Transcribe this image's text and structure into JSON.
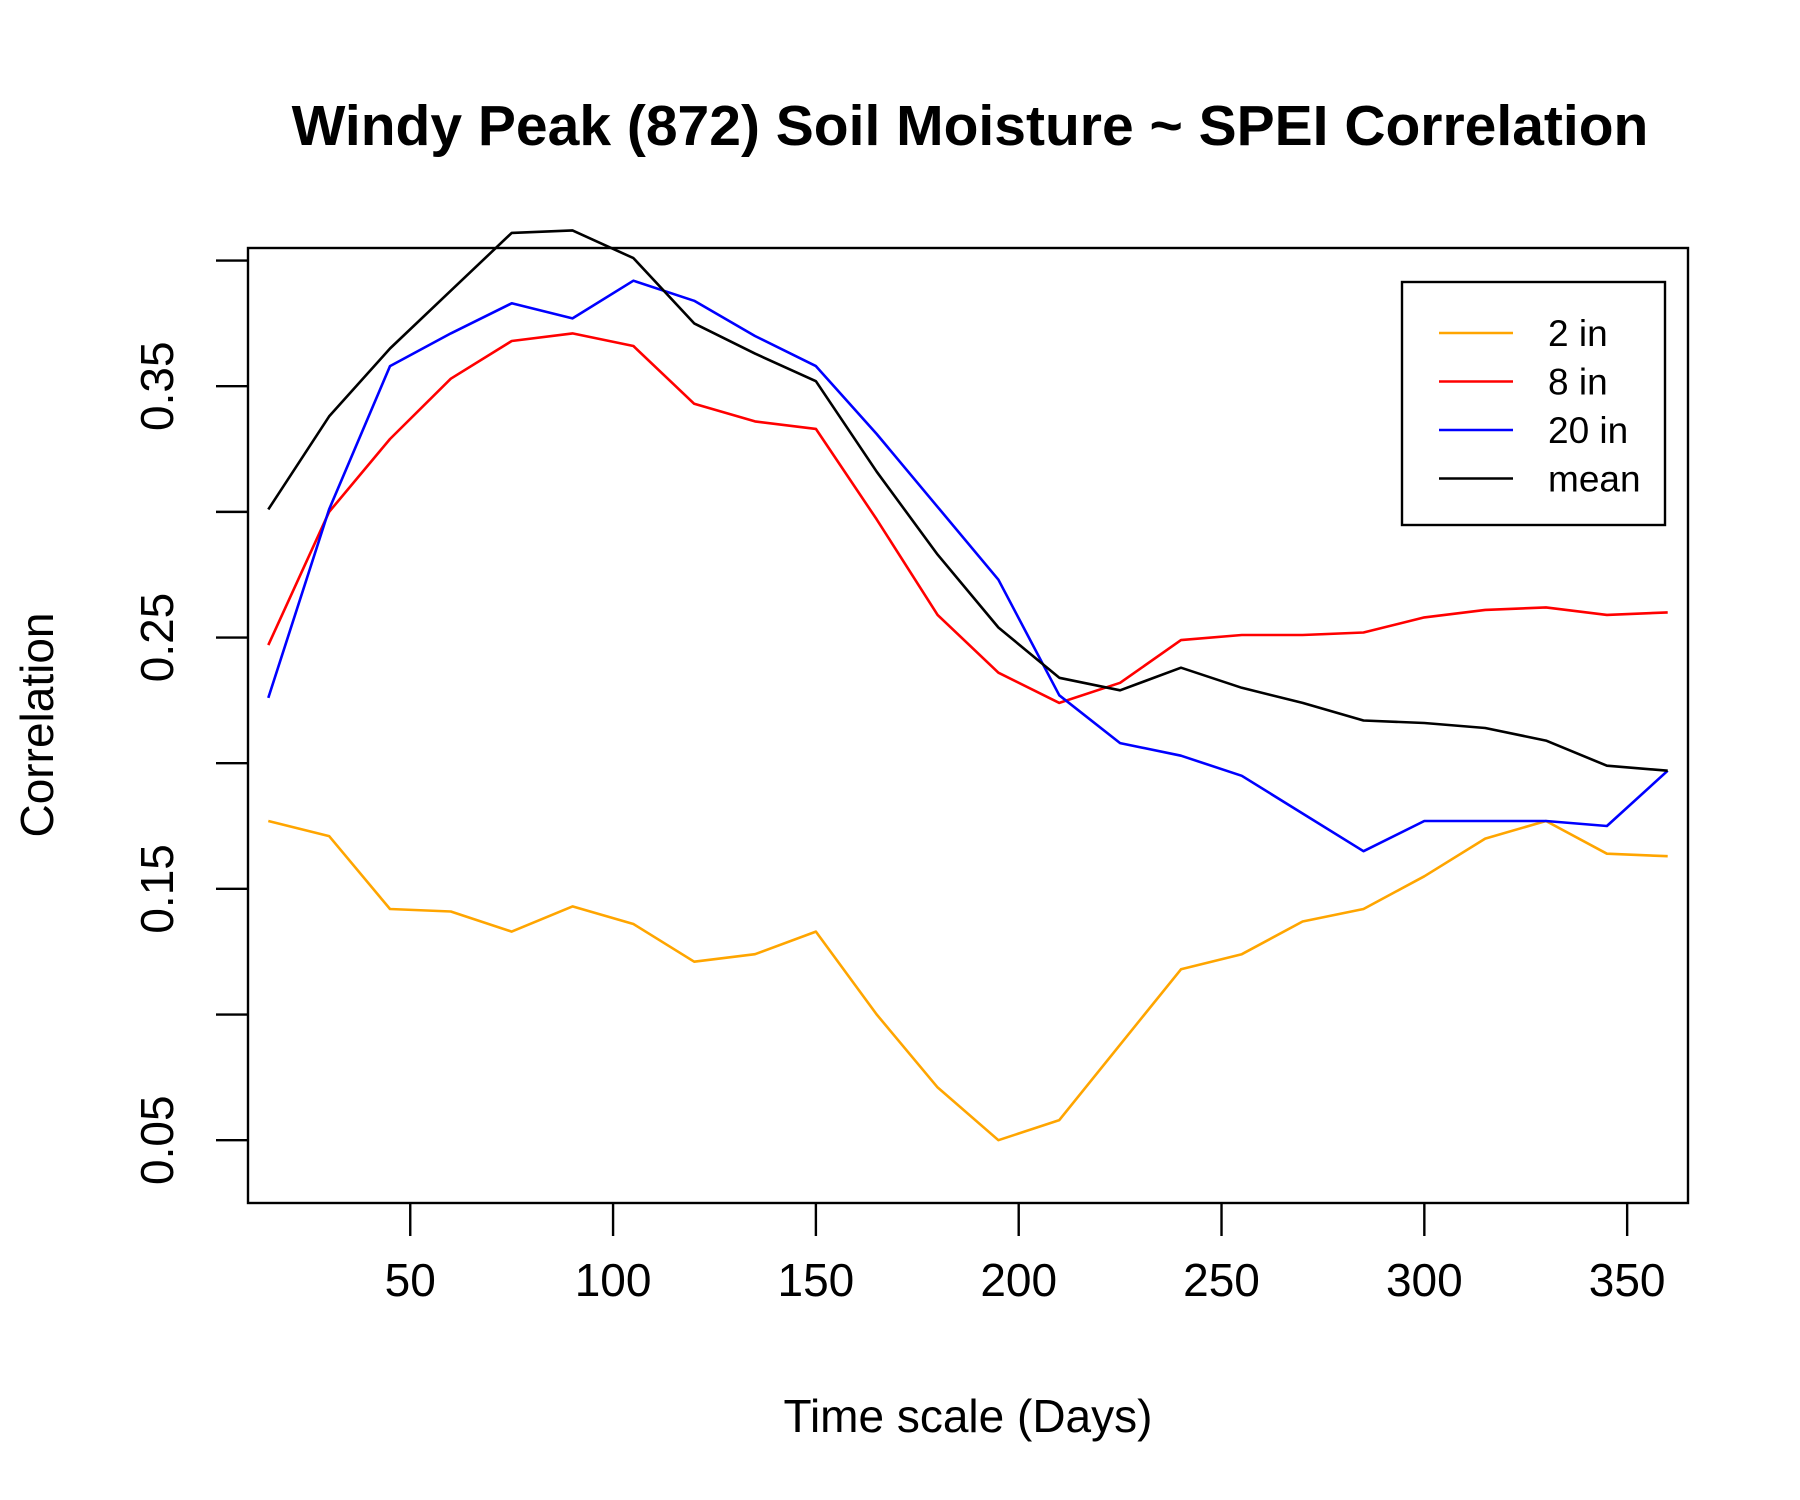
{
  "chart_data": {
    "type": "line",
    "title": "Windy Peak (872) Soil Moisture ~ SPEI Correlation",
    "xlabel": "Time scale (Days)",
    "ylabel": "Correlation",
    "xlim": [
      10,
      365
    ],
    "ylim": [
      0.025,
      0.405
    ],
    "x_ticks": [
      50,
      100,
      150,
      200,
      250,
      300,
      350
    ],
    "x_tick_labels": [
      "50",
      "100",
      "150",
      "200",
      "250",
      "300",
      "350"
    ],
    "y_ticks": [
      0.05,
      0.1,
      0.15,
      0.2,
      0.25,
      0.3,
      0.35,
      0.4
    ],
    "y_tick_labels": [
      "0.05",
      "",
      "0.15",
      "",
      "0.25",
      "",
      "0.35",
      ""
    ],
    "grid": false,
    "legend_position": "top-right",
    "x": [
      15,
      30,
      45,
      60,
      75,
      90,
      105,
      120,
      135,
      150,
      165,
      180,
      195,
      210,
      225,
      240,
      255,
      270,
      285,
      300,
      315,
      330,
      345,
      360
    ],
    "series": [
      {
        "name": "2 in",
        "color": "#FFA500",
        "values": [
          0.177,
          0.171,
          0.142,
          0.141,
          0.133,
          0.143,
          0.136,
          0.121,
          0.124,
          0.133,
          0.1,
          0.071,
          0.05,
          0.058,
          0.088,
          0.118,
          0.124,
          0.137,
          0.142,
          0.155,
          0.17,
          0.177,
          0.164,
          0.163
        ]
      },
      {
        "name": "8 in",
        "color": "#FF0000",
        "values": [
          0.247,
          0.3,
          0.329,
          0.353,
          0.368,
          0.371,
          0.366,
          0.343,
          0.336,
          0.333,
          0.297,
          0.259,
          0.236,
          0.224,
          0.232,
          0.249,
          0.251,
          0.251,
          0.252,
          0.258,
          0.261,
          0.262,
          0.259,
          0.26
        ]
      },
      {
        "name": "20 in",
        "color": "#0000FF",
        "values": [
          0.226,
          0.301,
          0.358,
          0.371,
          0.383,
          0.377,
          0.392,
          0.384,
          0.37,
          0.358,
          0.331,
          0.302,
          0.273,
          0.227,
          0.208,
          0.203,
          0.195,
          0.18,
          0.165,
          0.177,
          0.177,
          0.177,
          0.175,
          0.197
        ]
      },
      {
        "name": "mean",
        "color": "#000000",
        "values": [
          0.301,
          0.338,
          0.365,
          0.388,
          0.411,
          0.412,
          0.401,
          0.375,
          0.363,
          0.352,
          0.316,
          0.283,
          0.254,
          0.234,
          0.229,
          0.238,
          0.23,
          0.224,
          0.217,
          0.216,
          0.214,
          0.209,
          0.199,
          0.197
        ]
      }
    ]
  }
}
